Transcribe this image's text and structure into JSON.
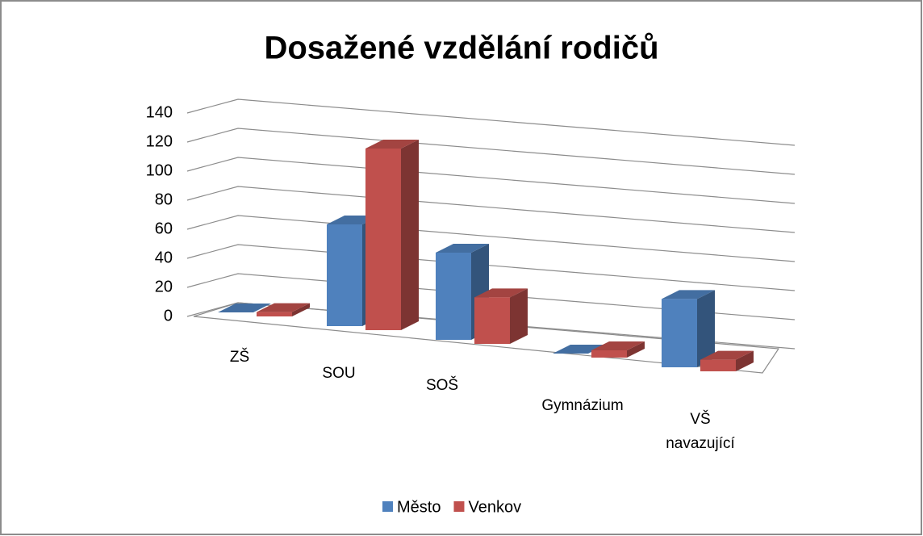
{
  "chart_data": {
    "type": "bar3d",
    "title": "Dosažené vzdělání rodičů",
    "categories": [
      "ZŠ",
      "SOU",
      "SOŠ",
      "Gymnázium",
      "VŠ navazující"
    ],
    "series": [
      {
        "name": "Město",
        "color": "#4f81bd",
        "values": [
          0,
          70,
          60,
          0,
          47
        ]
      },
      {
        "name": "Venkov",
        "color": "#c0504d",
        "values": [
          3,
          125,
          32,
          5,
          8
        ]
      }
    ],
    "ylim": [
      0,
      140
    ],
    "yticks": [
      0,
      20,
      40,
      60,
      80,
      100,
      120,
      140
    ],
    "grid": true,
    "legend": "bottom"
  }
}
